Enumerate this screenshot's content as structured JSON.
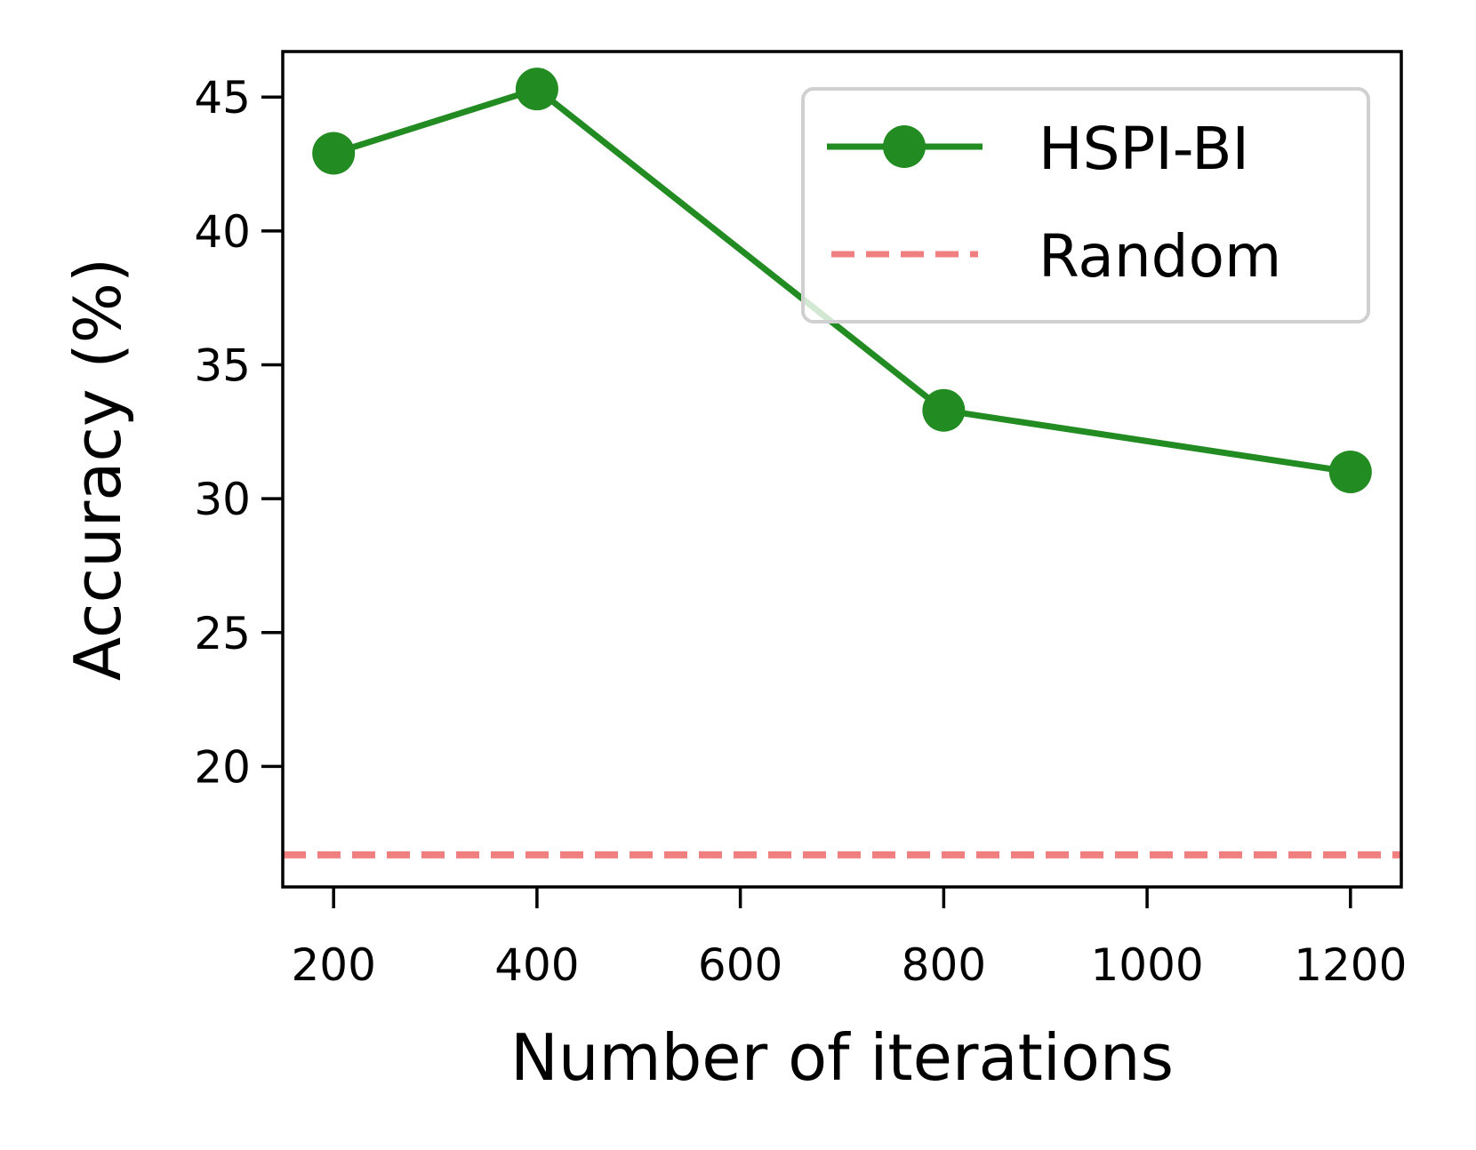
{
  "chart_data": {
    "type": "line",
    "xlabel": "Number of iterations",
    "ylabel": "Accuracy (%)",
    "xlim": [
      150,
      1250
    ],
    "ylim": [
      15.5,
      46.7
    ],
    "xticks": [
      "200",
      "400",
      "600",
      "800",
      "1000",
      "1200"
    ],
    "yticks": [
      "20",
      "25",
      "30",
      "35",
      "40",
      "45"
    ],
    "grid": false,
    "legend_position": "upper right",
    "series": [
      {
        "name": "HSPI-BI",
        "style": "solid line with circle markers",
        "color": "#228b22",
        "x": [
          200,
          400,
          800,
          1200
        ],
        "y": [
          42.9,
          45.3,
          33.3,
          31.0
        ]
      },
      {
        "name": "Random",
        "style": "dashed horizontal line",
        "color": "#f08080",
        "y_constant": 16.7
      }
    ]
  }
}
